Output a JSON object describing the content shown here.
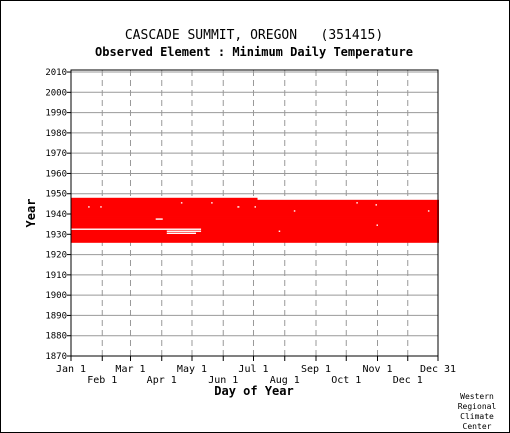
{
  "title": "CASCADE SUMMIT, OREGON   (351415)",
  "subtitle": "Observed Element : Minimum Daily Temperature",
  "credit": [
    "Western",
    "Regional",
    "Climate",
    "Center"
  ],
  "colors": {
    "coverage": "#ff0000",
    "gap": "#ffffff",
    "grid": "#999999",
    "axis": "#000000",
    "background": "#ffffff"
  },
  "chart_data": {
    "type": "heatmap",
    "title": "CASCADE SUMMIT, OREGON   (351415)",
    "subtitle": "Observed Element : Minimum Daily Temperature",
    "xlabel": "Day of Year",
    "ylabel": "Year",
    "xlim": [
      1,
      365
    ],
    "ylim": [
      1870,
      2011
    ],
    "x_ticks_upper": [
      {
        "label": "Jan 1",
        "day": 1
      },
      {
        "label": "Mar 1",
        "day": 60
      },
      {
        "label": "May 1",
        "day": 121
      },
      {
        "label": "Jul 1",
        "day": 182
      },
      {
        "label": "Sep 1",
        "day": 244
      },
      {
        "label": "Nov 1",
        "day": 305
      },
      {
        "label": "Dec 31",
        "day": 365
      }
    ],
    "x_ticks_lower": [
      {
        "label": "Feb 1",
        "day": 32
      },
      {
        "label": "Apr 1",
        "day": 91
      },
      {
        "label": "Jun 1",
        "day": 152
      },
      {
        "label": "Aug 1",
        "day": 213
      },
      {
        "label": "Oct 1",
        "day": 274
      },
      {
        "label": "Dec 1",
        "day": 335
      }
    ],
    "y_ticks": [
      1870,
      1880,
      1890,
      1900,
      1910,
      1920,
      1930,
      1940,
      1950,
      1960,
      1970,
      1980,
      1990,
      2000,
      2010
    ],
    "grid": true,
    "coverage": {
      "start_year": 1926,
      "end_year": 1947,
      "start_day": 1,
      "end_day": 365,
      "partial_last_year_end_day": 185
    },
    "gaps": [
      {
        "year": 1932,
        "start_day": 1,
        "end_day": 130
      },
      {
        "year": 1931,
        "start_day": 96,
        "end_day": 130
      },
      {
        "year": 1930,
        "start_day": 96,
        "end_day": 125
      },
      {
        "year": 1937,
        "start_day": 85,
        "end_day": 92
      },
      {
        "year": 1943,
        "start_day": 18,
        "end_day": 19
      },
      {
        "year": 1943,
        "start_day": 30,
        "end_day": 31
      },
      {
        "year": 1945,
        "start_day": 110,
        "end_day": 111
      },
      {
        "year": 1945,
        "start_day": 140,
        "end_day": 141
      },
      {
        "year": 1943,
        "start_day": 166,
        "end_day": 168
      },
      {
        "year": 1943,
        "start_day": 183,
        "end_day": 184
      },
      {
        "year": 1941,
        "start_day": 222,
        "end_day": 223
      },
      {
        "year": 1931,
        "start_day": 207,
        "end_day": 208
      },
      {
        "year": 1945,
        "start_day": 284,
        "end_day": 285
      },
      {
        "year": 1944,
        "start_day": 303,
        "end_day": 304
      },
      {
        "year": 1934,
        "start_day": 304,
        "end_day": 305
      },
      {
        "year": 1941,
        "start_day": 355,
        "end_day": 356
      }
    ]
  }
}
